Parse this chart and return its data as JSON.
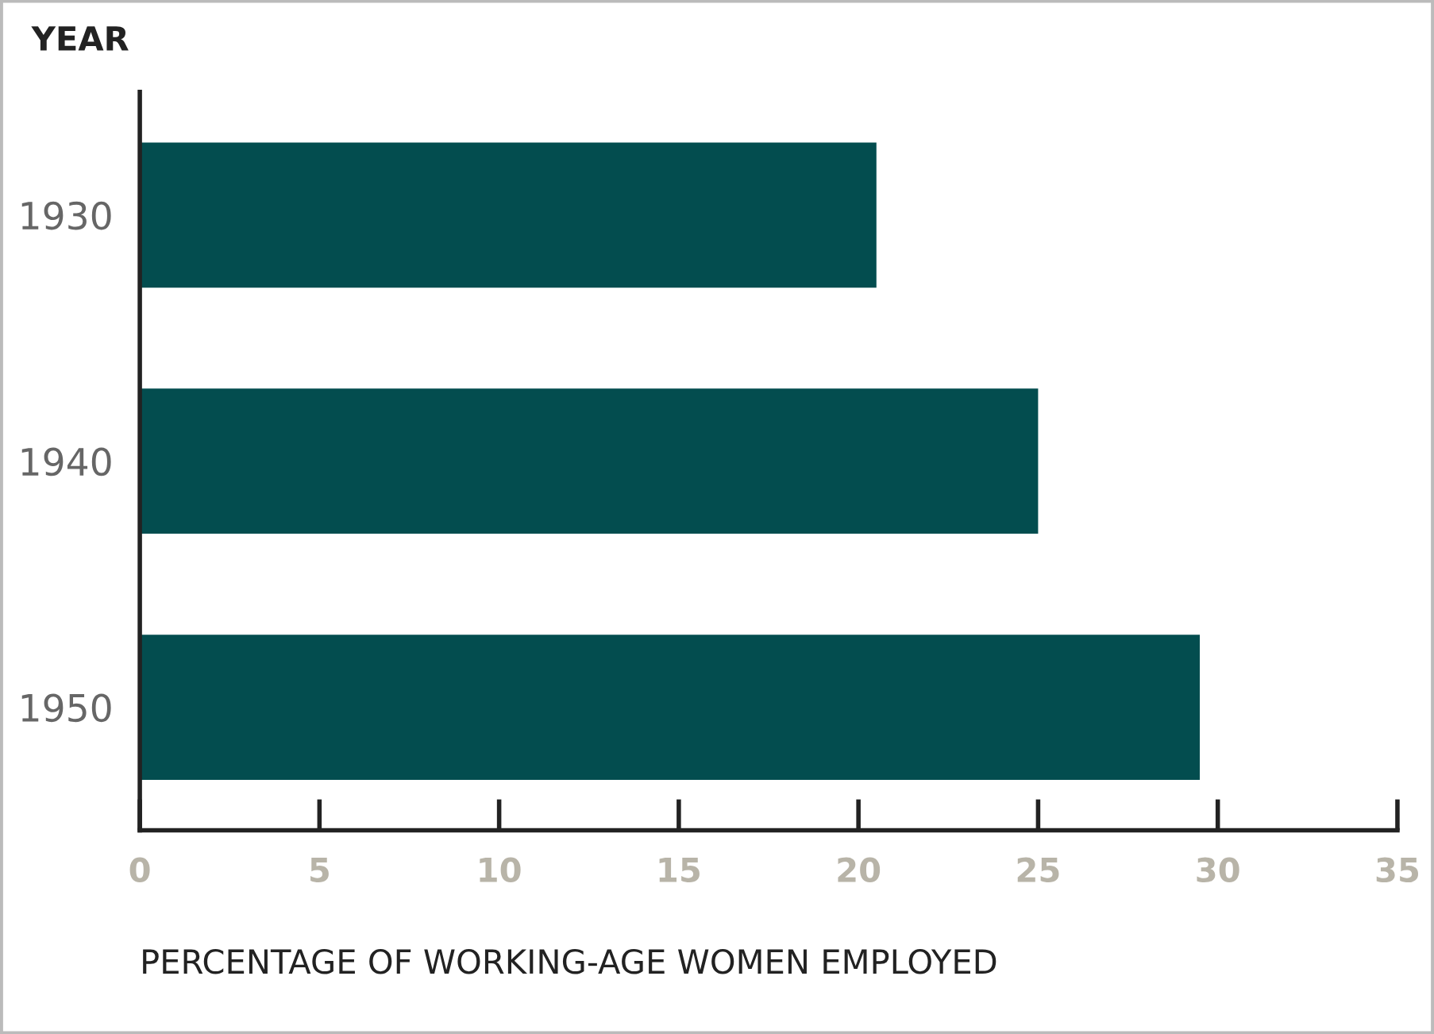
{
  "chart_data": {
    "type": "bar",
    "orientation": "horizontal",
    "ylabel": "YEAR",
    "xlabel": "PERCENTAGE OF WORKING-AGE WOMEN EMPLOYED",
    "categories": [
      "1930",
      "1940",
      "1950"
    ],
    "values": [
      20.5,
      25,
      29.5
    ],
    "color": "#034d4f",
    "xlim": [
      0,
      35
    ],
    "xticks": [
      0,
      5,
      10,
      15,
      20,
      25,
      30,
      35
    ],
    "grid": false,
    "legend": false
  }
}
